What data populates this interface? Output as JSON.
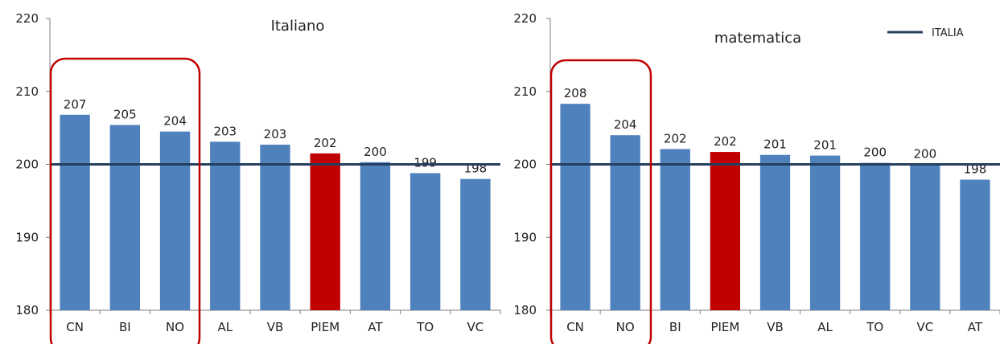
{
  "colors": {
    "bar": "#4f81bd",
    "highlight_bar": "#c00000",
    "reference_line": "#243f60",
    "highlight_box": "#c00000",
    "axis": "#7f7f7f"
  },
  "legend": {
    "label": "ITALIA",
    "placement": "top-right"
  },
  "chart_data": [
    {
      "type": "bar",
      "title": "Italiano",
      "categories": [
        "CN",
        "BI",
        "NO",
        "AL",
        "VB",
        "PIEM",
        "AT",
        "TO",
        "VC"
      ],
      "values": [
        206.8,
        205.4,
        204.5,
        203.1,
        202.7,
        201.5,
        200.3,
        198.8,
        198.0
      ],
      "data_labels": [
        "207",
        "205",
        "204",
        "203",
        "203",
        "202",
        "200",
        "199",
        "198"
      ],
      "highlight_index": 5,
      "highlight_group": [
        0,
        1,
        2
      ],
      "reference_value": 200,
      "ylim": [
        180,
        220
      ],
      "yticks": [
        180,
        190,
        200,
        210,
        220
      ],
      "ytick_labels": [
        "180",
        "190",
        "200",
        "210",
        "220"
      ],
      "grid": false
    },
    {
      "type": "bar",
      "title": "matematica",
      "categories": [
        "CN",
        "NO",
        "BI",
        "PIEM",
        "VB",
        "AL",
        "TO",
        "VC",
        "AT"
      ],
      "values": [
        208.3,
        204.0,
        202.1,
        201.7,
        201.3,
        201.2,
        200.2,
        200.0,
        197.9
      ],
      "data_labels": [
        "208",
        "204",
        "202",
        "202",
        "201",
        "201",
        "200",
        "200",
        "198"
      ],
      "highlight_index": 3,
      "highlight_group": [
        0,
        1
      ],
      "reference_value": 200,
      "ylim": [
        180,
        220
      ],
      "yticks": [
        180,
        190,
        200,
        210,
        220
      ],
      "ytick_labels": [
        "180",
        "190",
        "200",
        "210",
        "220"
      ],
      "grid": false
    }
  ]
}
